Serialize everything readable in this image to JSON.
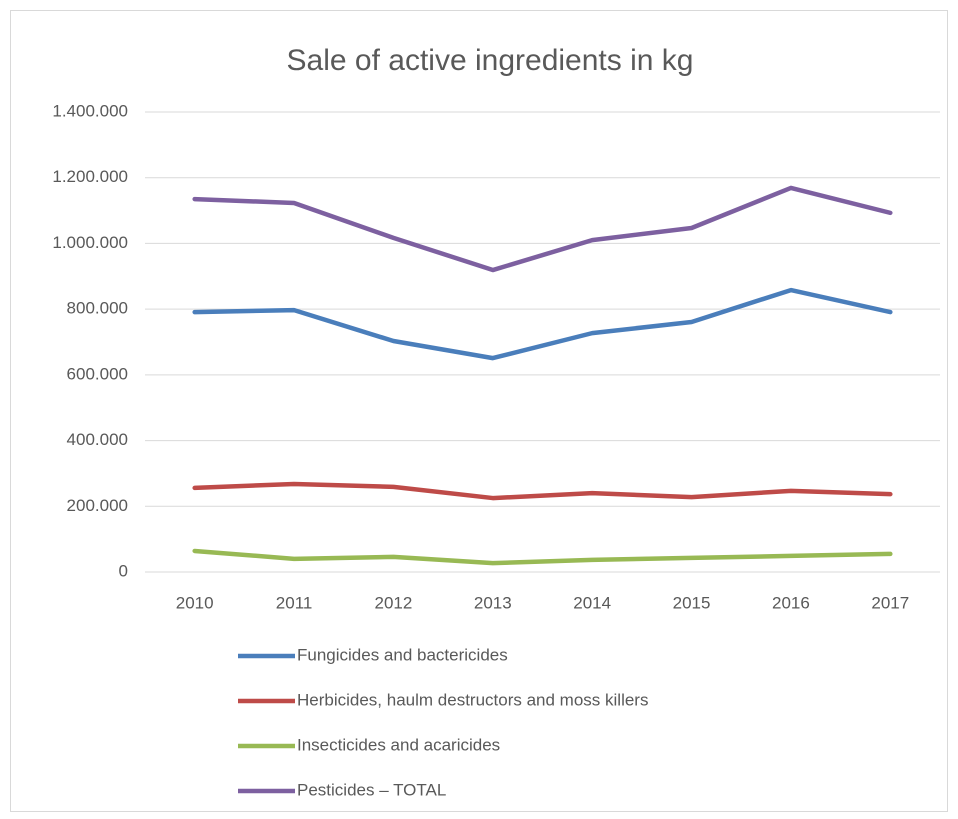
{
  "chart_data": {
    "type": "line",
    "title": "Sale of active ingredients in kg",
    "categories": [
      "2010",
      "2011",
      "2012",
      "2013",
      "2014",
      "2015",
      "2016",
      "2017"
    ],
    "series": [
      {
        "name": "Fungicides and bactericides",
        "color": "#4a7ebb",
        "values": [
          791000,
          797000,
          703000,
          651000,
          727000,
          761000,
          858000,
          791000
        ]
      },
      {
        "name": "Herbicides, haulm destructors and moss killers",
        "color": "#be4b48",
        "values": [
          256000,
          268000,
          259000,
          225000,
          240000,
          228000,
          247000,
          237000
        ]
      },
      {
        "name": "Insecticides and acaricides",
        "color": "#98b954",
        "values": [
          64000,
          40000,
          46000,
          27000,
          37000,
          43000,
          49000,
          55000
        ]
      },
      {
        "name": "Pesticides – TOTAL",
        "color": "#7d60a0",
        "values": [
          1135000,
          1123000,
          1017000,
          919000,
          1010000,
          1047000,
          1169000,
          1093000
        ]
      }
    ],
    "ylim": [
      0,
      1400000
    ],
    "yticks": [
      0,
      {
        "value": 200000,
        "label": "200.000"
      },
      {
        "value": 400000,
        "label": "400.000"
      },
      {
        "value": 600000,
        "label": "600.000"
      },
      {
        "value": 800000,
        "label": "800.000"
      },
      {
        "value": 1000000,
        "label": "1.000.000"
      },
      {
        "value": 1200000,
        "label": "1.200.000"
      },
      {
        "value": 1400000,
        "label": "1.400.000"
      }
    ],
    "grid": true,
    "legend": "bottom"
  }
}
